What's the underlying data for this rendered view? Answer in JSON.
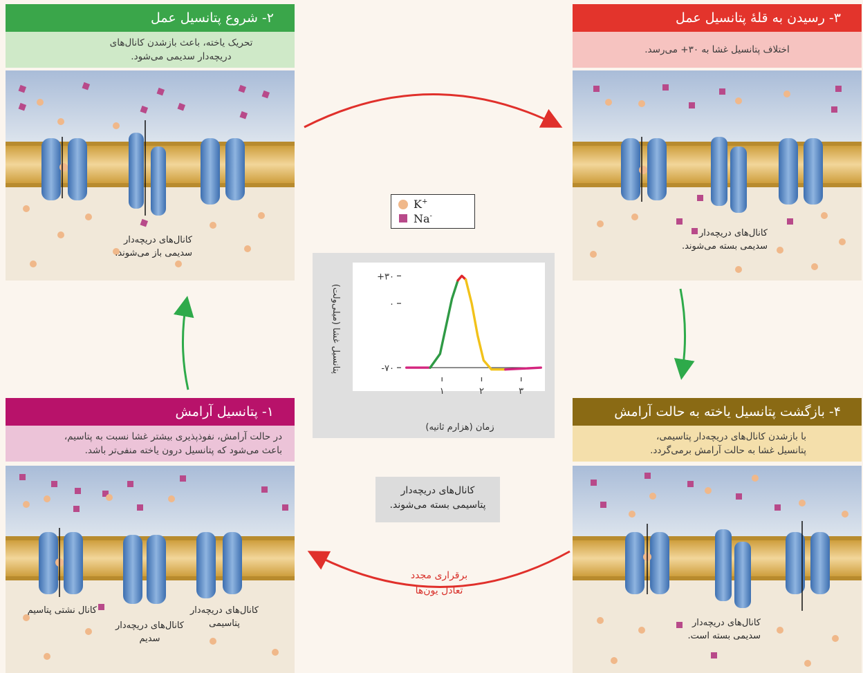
{
  "panels": {
    "p2": {
      "title": "۲- شروع پتانسیل عمل",
      "desc_line1": "تحریک یاخته، باعث بازشدن کانال‌های",
      "desc_line2": "دریچه‌دار سدیمی می‌شود.",
      "label_line1": "کانال‌های دریچه‌دار",
      "label_line2": "سدیمی باز می‌شوند.",
      "title_color": "#3aa64a",
      "desc_color": "#cfe9c8"
    },
    "p3": {
      "title": "۳- رسیدن به قلهٔ پتانسیل عمل",
      "desc_line1": "اختلاف پتانسیل غشا به ۳۰+ می‌رسد.",
      "label_line1": "کانال‌های دریچه‌دار",
      "label_line2": "سدیمی بسته می‌شوند.",
      "title_color": "#e3342c",
      "desc_color": "#f6c3c0"
    },
    "p1": {
      "title": "۱- پتانسیل آرامش",
      "desc_line1": "در حالت آرامش، نفوذپذیری بیشتر غشا نسبت به پتاسیم،",
      "desc_line2": "باعث می‌شود که پتانسیل درون یاخته منفی‌تر باشد.",
      "label_leak": "کانال نشتی پتاسیم",
      "label_na_line1": "کانال‌های دریچه‌دار",
      "label_na_line2": "سدیم",
      "label_k_line1": "کانال‌های دریچه‌دار",
      "label_k_line2": "پتاسیمی",
      "title_color": "#b8126a",
      "desc_color": "#ecc3d8"
    },
    "p4": {
      "title": "۴- بازگشت پتانسیل یاخته به حالت آرامش",
      "desc_line1": "با بازشدن کانال‌های دریچه‌دار پتاسیمی،",
      "desc_line2": "پتانسیل غشا به حالت آرامش برمی‌گردد.",
      "label_line1": "کانال‌های دریچه‌دار",
      "label_line2": "سدیمی بسته است.",
      "title_color": "#8a6a14",
      "desc_color": "#f4dfab"
    }
  },
  "legend": {
    "k": "K",
    "k_sup": "+",
    "na": "Na",
    "na_sup": "-",
    "k_color": "#f0b88a",
    "na_color": "#b84a8a"
  },
  "center_notes": {
    "gray_line1": "کانال‌های دریچه‌دار",
    "gray_line2": "پتاسیمی بسته می‌شوند.",
    "red_line1": "برقراری مجدد",
    "red_line2": "تعادل یون‌ها"
  },
  "chart_data": {
    "type": "line",
    "ylabel": "پتانسیل غشا (میلی‌ولت)",
    "xlabel": "زمان (هزارم ثانیه)",
    "y_ticks": [
      "+۳۰",
      "۰",
      "-۷۰"
    ],
    "y_tick_values": [
      30,
      0,
      -70
    ],
    "x_ticks": [
      "۱",
      "۲",
      "۳"
    ],
    "x_tick_values": [
      1,
      2,
      3
    ],
    "ylim": [
      -85,
      40
    ],
    "xlim": [
      0,
      3.6
    ],
    "series": [
      {
        "segment": "resting",
        "color": "#d4257e",
        "points": [
          [
            0.1,
            -70
          ],
          [
            0.7,
            -70
          ]
        ]
      },
      {
        "segment": "rising",
        "color": "#2f9a45",
        "points": [
          [
            0.7,
            -70
          ],
          [
            0.95,
            -55
          ],
          [
            1.1,
            -25
          ],
          [
            1.25,
            5
          ],
          [
            1.4,
            25
          ]
        ]
      },
      {
        "segment": "peak",
        "color": "#e0252b",
        "points": [
          [
            1.4,
            25
          ],
          [
            1.5,
            30
          ],
          [
            1.6,
            26
          ]
        ]
      },
      {
        "segment": "falling",
        "color": "#f2c21a",
        "points": [
          [
            1.6,
            26
          ],
          [
            1.75,
            0
          ],
          [
            1.9,
            -35
          ],
          [
            2.05,
            -62
          ],
          [
            2.25,
            -72
          ],
          [
            2.6,
            -72
          ]
        ]
      },
      {
        "segment": "return",
        "color": "#d4257e",
        "points": [
          [
            2.6,
            -72
          ],
          [
            3.5,
            -70
          ]
        ]
      }
    ],
    "baseline": -70
  }
}
